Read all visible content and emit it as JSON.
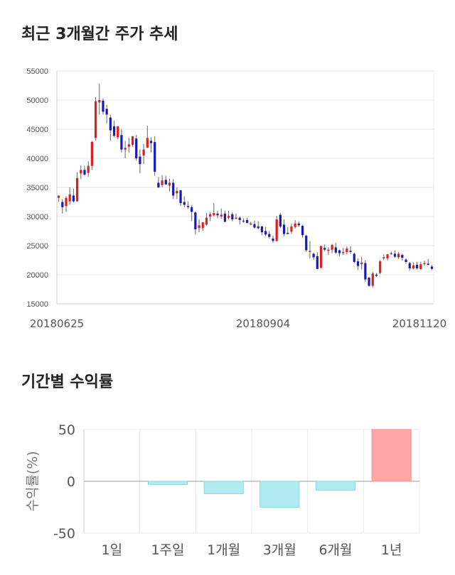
{
  "sections": {
    "candle_title": "최근 3개월간 주가 추세",
    "returns_title": "기간별 수익률"
  },
  "chart_data": [
    {
      "type": "candlestick",
      "title": "최근 3개월간 주가 추세",
      "ylim": [
        15000,
        55000
      ],
      "y_ticks": [
        15000,
        20000,
        25000,
        30000,
        35000,
        40000,
        45000,
        50000,
        55000
      ],
      "x_tick_labels": [
        "20180625",
        "20180904",
        "20181120"
      ],
      "grid": true,
      "colors": {
        "up": "#dd1f1f",
        "down": "#1a1ab8",
        "wick": "#666666"
      },
      "candles": [
        [
          33200,
          33600,
          32500,
          33600
        ],
        [
          32500,
          33000,
          30500,
          31600
        ],
        [
          31800,
          33500,
          30800,
          33200
        ],
        [
          32600,
          35000,
          32000,
          33800
        ],
        [
          33600,
          34800,
          32400,
          32600
        ],
        [
          32600,
          37600,
          32600,
          36600
        ],
        [
          37400,
          38800,
          36400,
          38000
        ],
        [
          38000,
          38700,
          37000,
          37200
        ],
        [
          37500,
          39500,
          36800,
          38700
        ],
        [
          38700,
          43000,
          38000,
          42800
        ],
        [
          43500,
          50500,
          43000,
          49800
        ],
        [
          49600,
          52800,
          47500,
          50000
        ],
        [
          49900,
          50300,
          47500,
          48000
        ],
        [
          48500,
          49200,
          46000,
          47500
        ],
        [
          47000,
          47500,
          43000,
          44800
        ],
        [
          45500,
          46500,
          43600,
          43900
        ],
        [
          43600,
          45500,
          43300,
          45500
        ],
        [
          44000,
          45000,
          41000,
          41500
        ],
        [
          41500,
          43000,
          40000,
          41800
        ],
        [
          42000,
          43500,
          41000,
          42400
        ],
        [
          42300,
          43800,
          42000,
          43800
        ],
        [
          43400,
          44000,
          39600,
          40000
        ],
        [
          40300,
          41500,
          37400,
          39000
        ],
        [
          40500,
          42500,
          39000,
          41500
        ],
        [
          41800,
          45600,
          41800,
          43500
        ],
        [
          43000,
          43600,
          41000,
          42600
        ],
        [
          42800,
          43800,
          37000,
          37700
        ],
        [
          35800,
          36800,
          34900,
          35000
        ],
        [
          35400,
          37100,
          35000,
          36200
        ],
        [
          36300,
          37000,
          35500,
          35500
        ],
        [
          35300,
          36500,
          34300,
          35800
        ],
        [
          35800,
          36400,
          33000,
          33600
        ],
        [
          34000,
          35000,
          33000,
          34400
        ],
        [
          34500,
          34600,
          31800,
          32300
        ],
        [
          32500,
          33500,
          31600,
          32000
        ],
        [
          31800,
          32600,
          31300,
          31700
        ],
        [
          31600,
          32000,
          29200,
          30800
        ],
        [
          30700,
          30900,
          26900,
          27800
        ],
        [
          28000,
          29500,
          27300,
          28500
        ],
        [
          28000,
          29000,
          27500,
          29000
        ],
        [
          28600,
          30600,
          28400,
          29800
        ],
        [
          30000,
          30800,
          29200,
          30400
        ],
        [
          30200,
          32300,
          30000,
          30600
        ],
        [
          30500,
          31000,
          29700,
          30200
        ],
        [
          30000,
          31400,
          29600,
          30300
        ],
        [
          30500,
          31000,
          29000,
          29100
        ],
        [
          29800,
          31000,
          29500,
          30100
        ],
        [
          30400,
          30700,
          29200,
          29500
        ],
        [
          29700,
          30500,
          29500,
          29800
        ],
        [
          29800,
          30000,
          28600,
          29400
        ],
        [
          29100,
          29700,
          28900,
          29300
        ],
        [
          29400,
          29800,
          28800,
          28900
        ],
        [
          28800,
          29100,
          28500,
          28800
        ],
        [
          28700,
          29300,
          27900,
          28100
        ],
        [
          28300,
          29200,
          27800,
          28000
        ],
        [
          28300,
          28400,
          26800,
          27300
        ],
        [
          27500,
          28200,
          26600,
          26900
        ],
        [
          27000,
          27500,
          26200,
          26500
        ],
        [
          26200,
          26700,
          25500,
          25800
        ],
        [
          25800,
          30100,
          25700,
          29500
        ],
        [
          30300,
          30600,
          28000,
          28300
        ],
        [
          28600,
          29500,
          26600,
          27000
        ],
        [
          27200,
          28200,
          26900,
          27100
        ],
        [
          27400,
          28800,
          27000,
          28300
        ],
        [
          28200,
          29400,
          27900,
          28800
        ],
        [
          28800,
          29200,
          28200,
          28500
        ],
        [
          28400,
          28500,
          26400,
          26800
        ],
        [
          26700,
          26900,
          23900,
          24200
        ],
        [
          24000,
          25800,
          22800,
          24100
        ],
        [
          23600,
          23800,
          22600,
          23000
        ],
        [
          23200,
          23900,
          20900,
          21000
        ],
        [
          21200,
          25000,
          21100,
          24900
        ],
        [
          24600,
          25200,
          24000,
          24300
        ],
        [
          24100,
          24700,
          23400,
          24300
        ],
        [
          24300,
          25300,
          23700,
          25100
        ],
        [
          24700,
          25500,
          23600,
          23800
        ],
        [
          24200,
          24300,
          23200,
          23700
        ],
        [
          23800,
          24600,
          23400,
          23900
        ],
        [
          23900,
          24800,
          23500,
          24500
        ],
        [
          24100,
          24900,
          23600,
          24000
        ],
        [
          23600,
          23800,
          22000,
          22200
        ],
        [
          22300,
          22800,
          20800,
          21500
        ],
        [
          21800,
          23100,
          20900,
          22100
        ],
        [
          22000,
          22500,
          18800,
          19200
        ],
        [
          19500,
          19600,
          17900,
          18100
        ],
        [
          18100,
          20500,
          17800,
          20200
        ],
        [
          20000,
          20300,
          19600,
          19900
        ],
        [
          20300,
          22500,
          20100,
          22300
        ],
        [
          22800,
          23500,
          22500,
          23000
        ],
        [
          22800,
          23600,
          22400,
          23500
        ],
        [
          23700,
          24000,
          23400,
          23700
        ],
        [
          23600,
          24200,
          22900,
          23100
        ],
        [
          23000,
          23900,
          22700,
          23600
        ],
        [
          23400,
          23600,
          22400,
          22900
        ],
        [
          22600,
          22800,
          21900,
          22200
        ],
        [
          22000,
          22200,
          20700,
          21100
        ],
        [
          21100,
          22100,
          20900,
          21600
        ],
        [
          21700,
          22200,
          20900,
          21100
        ],
        [
          21000,
          22200,
          20800,
          21800
        ],
        [
          21800,
          22400,
          21500,
          22000
        ],
        [
          21900,
          22700,
          21600,
          21700
        ],
        [
          21400,
          21700,
          20800,
          21000
        ]
      ]
    },
    {
      "type": "bar",
      "title": "기간별 수익률",
      "ylabel": "수익률(%)",
      "categories": [
        "1일",
        "1주일",
        "1개월",
        "3개월",
        "6개월",
        "1년"
      ],
      "values": [
        0.0,
        -3.0,
        -12.0,
        -25.0,
        -8.5,
        50.0
      ],
      "ylim": [
        -50,
        50
      ],
      "y_ticks": [
        50,
        0,
        -50
      ],
      "grid": true,
      "colors": {
        "positive": "#ffa6a6",
        "negative": "#b0ebf4"
      }
    }
  ]
}
